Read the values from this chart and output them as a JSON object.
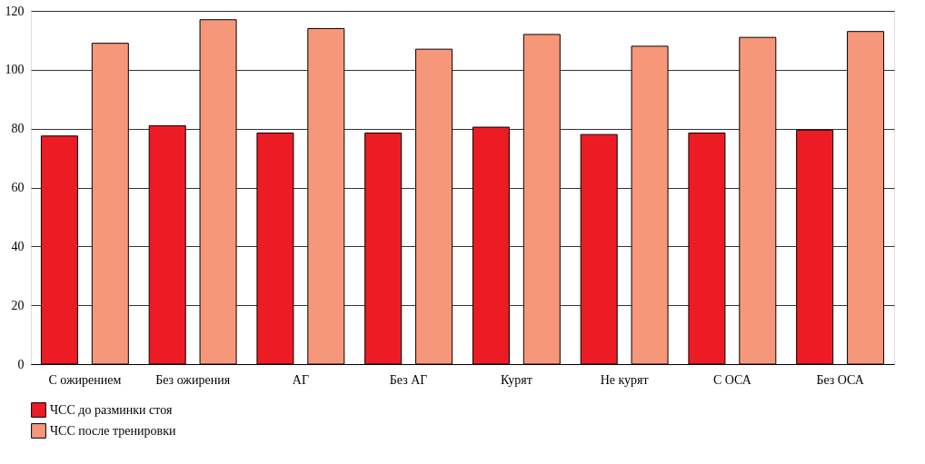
{
  "chart_data": {
    "type": "bar",
    "categories": [
      "С ожирением",
      "Без ожирения",
      "АГ",
      "Без АГ",
      "Курят",
      "Не курят",
      "С ОСА",
      "Без ОСА"
    ],
    "series": [
      {
        "name": "ЧСС до разминки стоя",
        "color": "#ed1c24",
        "values": [
          77.5,
          81,
          78.5,
          78.5,
          80.5,
          78,
          78.5,
          79.5
        ]
      },
      {
        "name": "ЧСС после тренировки",
        "color": "#f7977a",
        "values": [
          109,
          117,
          114,
          107,
          112,
          108,
          111,
          113
        ]
      }
    ],
    "ylim": [
      0,
      120
    ],
    "yticks": [
      0,
      20,
      40,
      60,
      80,
      100,
      120
    ],
    "grid": "y",
    "legend": "bottom left"
  }
}
